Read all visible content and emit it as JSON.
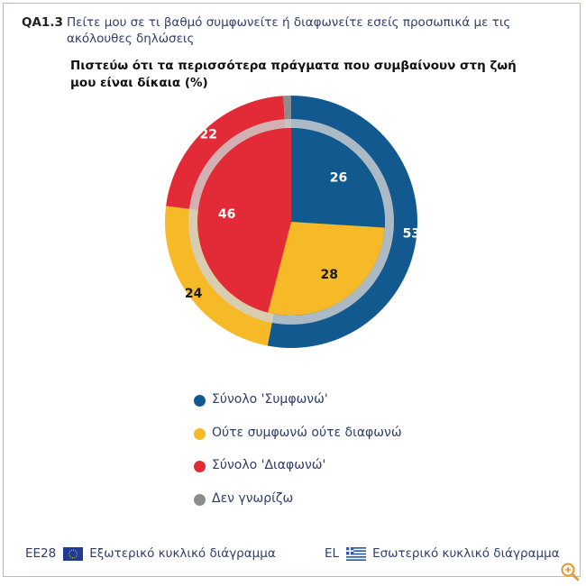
{
  "header": {
    "code": "QA1.3",
    "question": "Πείτε μου σε τι βαθμό συμφωνείτε ή διαφωνείτε εσείς προσωπικά με τις ακόλουθες δηλώσεις"
  },
  "chart_data": {
    "type": "pie",
    "title": "Πιστεύω ότι τα περισσότερα πράγματα που συμβαίνουν στη ζωή μου είναι δίκαια (%)",
    "unit": "%",
    "categories": [
      "Σύνολο 'Συμφωνώ'",
      "Ούτε συμφωνώ ούτε διαφωνώ",
      "Σύνολο 'Διαφωνώ'",
      "Δεν γνωρίζω"
    ],
    "colors": [
      "#11598e",
      "#f6b928",
      "#e22b37",
      "#8b8c8e"
    ],
    "series": [
      {
        "name": "Εξωτερικό κυκλικό διάγραμμα",
        "group": "EE28",
        "values": [
          53,
          24,
          22,
          1
        ],
        "labels": [
          "53",
          "24",
          "22",
          ""
        ]
      },
      {
        "name": "Εσωτερικό κυκλικό διάγραμμα",
        "group": "EL",
        "values": [
          26,
          28,
          46,
          0
        ],
        "labels": [
          "26",
          "28",
          "46",
          ""
        ]
      }
    ]
  },
  "footer": {
    "left_code": "EE28",
    "left_label": "Εξωτερικό κυκλικό διάγραμμα",
    "right_code": "EL",
    "right_label": "Εσωτερικό κυκλικό διάγραμμα",
    "zoom_icon": "zoom-in-icon"
  }
}
